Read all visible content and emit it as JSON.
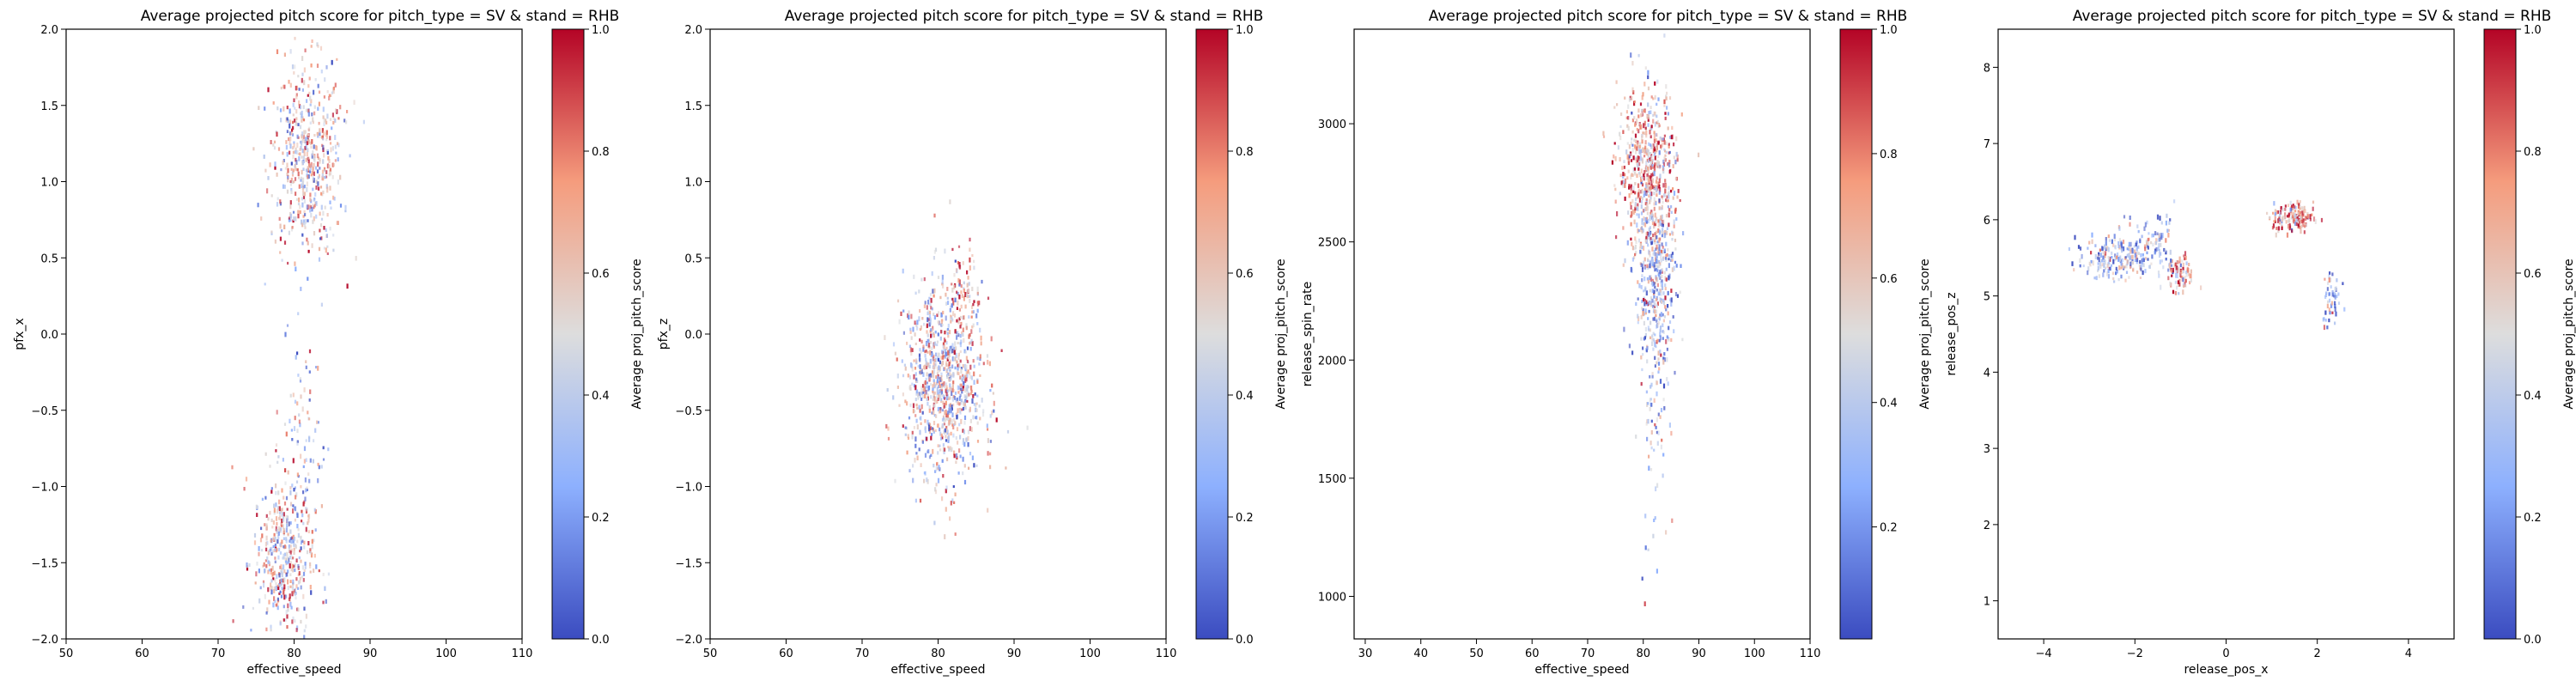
{
  "figure": {
    "colormap": "coolwarm",
    "colors": {
      "low": "#3b4cc0",
      "mid": "#dddddd",
      "high": "#b40426"
    }
  },
  "chart_data": [
    {
      "type": "heatmap",
      "title": "Average projected pitch score for pitch_type = SV & stand = RHB",
      "xlabel": "effective_speed",
      "ylabel": "pfx_x",
      "xlim": [
        50,
        110
      ],
      "ylim": [
        -2.0,
        2.0
      ],
      "xticks": [
        "50",
        "60",
        "70",
        "80",
        "90",
        "100",
        "110"
      ],
      "yticks": [
        "-2.0",
        "-1.5",
        "-1.0",
        "-0.5",
        "0.0",
        "0.5",
        "1.0",
        "1.5",
        "2.0"
      ],
      "colorbar": {
        "label": "Average proj_pitch_score",
        "range": [
          0.0,
          1.0
        ],
        "ticks": [
          "0.0",
          "0.2",
          "0.4",
          "0.6",
          "0.8",
          "1.0"
        ]
      },
      "clusters": [
        {
          "x": 81.5,
          "y": 1.15,
          "sx": 2.4,
          "sy": 0.32,
          "n": 520,
          "mean_score": 0.56
        },
        {
          "x": 78.5,
          "y": -1.45,
          "sx": 2.0,
          "sy": 0.28,
          "n": 420,
          "mean_score": 0.55
        },
        {
          "x": 81.0,
          "y": -0.75,
          "sx": 1.6,
          "sy": 0.35,
          "n": 90,
          "mean_score": 0.4
        }
      ]
    },
    {
      "type": "heatmap",
      "title": "Average projected pitch score for pitch_type = SV & stand = RHB",
      "xlabel": "effective_speed",
      "ylabel": "pfx_z",
      "xlim": [
        50,
        110
      ],
      "ylim": [
        -2.0,
        2.0
      ],
      "xticks": [
        "50",
        "60",
        "70",
        "80",
        "90",
        "100",
        "110"
      ],
      "yticks": [
        "-2.0",
        "-1.5",
        "-1.0",
        "-0.5",
        "0.0",
        "0.5",
        "1.0",
        "1.5",
        "2.0"
      ],
      "colorbar": {
        "label": "Average proj_pitch_score",
        "range": [
          0.0,
          1.0
        ],
        "ticks": [
          "0.0",
          "0.2",
          "0.4",
          "0.6",
          "0.8",
          "1.0"
        ]
      },
      "clusters": [
        {
          "x": 80.5,
          "y": -0.3,
          "sx": 2.6,
          "sy": 0.33,
          "n": 900,
          "mean_score": 0.5
        },
        {
          "x": 84.0,
          "y": 0.25,
          "sx": 1.2,
          "sy": 0.2,
          "n": 60,
          "mean_score": 0.75
        }
      ]
    },
    {
      "type": "heatmap",
      "title": "Average projected pitch score for pitch_type = SV & stand = RHB",
      "xlabel": "effective_speed",
      "ylabel": "release_spin_rate",
      "xlim": [
        28,
        110
      ],
      "ylim": [
        820,
        3400
      ],
      "xticks": [
        "30",
        "40",
        "50",
        "60",
        "70",
        "80",
        "90",
        "100",
        "110"
      ],
      "yticks": [
        "1000",
        "1500",
        "2000",
        "2500",
        "3000"
      ],
      "colorbar": {
        "label": "Average proj_pitch_score",
        "range": [
          0.02,
          1.0
        ],
        "ticks": [
          "0.2",
          "0.4",
          "0.6",
          "0.8",
          "1.0"
        ]
      },
      "clusters": [
        {
          "x": 80.5,
          "y": 2820,
          "sx": 2.6,
          "sy": 170,
          "n": 520,
          "mean_score": 0.7
        },
        {
          "x": 82.0,
          "y": 2350,
          "sx": 1.8,
          "sy": 220,
          "n": 420,
          "mean_score": 0.38
        },
        {
          "x": 82.0,
          "y": 1850,
          "sx": 1.3,
          "sy": 230,
          "n": 60,
          "mean_score": 0.4
        },
        {
          "x": 81.0,
          "y": 1150,
          "sx": 1.0,
          "sy": 160,
          "n": 8,
          "mean_score": 0.35
        }
      ]
    },
    {
      "type": "heatmap",
      "title": "Average projected pitch score for pitch_type = SV & stand = RHB",
      "xlabel": "release_pos_x",
      "ylabel": "release_pos_z",
      "xlim": [
        -5.0,
        5.0
      ],
      "ylim": [
        0.5,
        8.5
      ],
      "xticks": [
        "-4",
        "-2",
        "0",
        "2",
        "4"
      ],
      "yticks": [
        "1",
        "2",
        "3",
        "4",
        "5",
        "6",
        "7",
        "8"
      ],
      "colorbar": {
        "label": "Average proj_pitch_score",
        "range": [
          0.0,
          1.0
        ],
        "ticks": [
          "0.0",
          "0.2",
          "0.4",
          "0.6",
          "0.8",
          "1.0"
        ]
      },
      "clusters": [
        {
          "x": -2.6,
          "y": 5.5,
          "sx": 0.35,
          "sy": 0.13,
          "n": 130,
          "mean_score": 0.32
        },
        {
          "x": -1.9,
          "y": 5.65,
          "sx": 0.3,
          "sy": 0.18,
          "n": 110,
          "mean_score": 0.3
        },
        {
          "x": -1.4,
          "y": 5.75,
          "sx": 0.2,
          "sy": 0.25,
          "n": 40,
          "mean_score": 0.35
        },
        {
          "x": -1.0,
          "y": 5.3,
          "sx": 0.14,
          "sy": 0.12,
          "n": 70,
          "mean_score": 0.68
        },
        {
          "x": 1.45,
          "y": 6.05,
          "sx": 0.22,
          "sy": 0.1,
          "n": 150,
          "mean_score": 0.72
        },
        {
          "x": 2.3,
          "y": 5.0,
          "sx": 0.1,
          "sy": 0.18,
          "n": 50,
          "mean_score": 0.3
        }
      ]
    }
  ]
}
